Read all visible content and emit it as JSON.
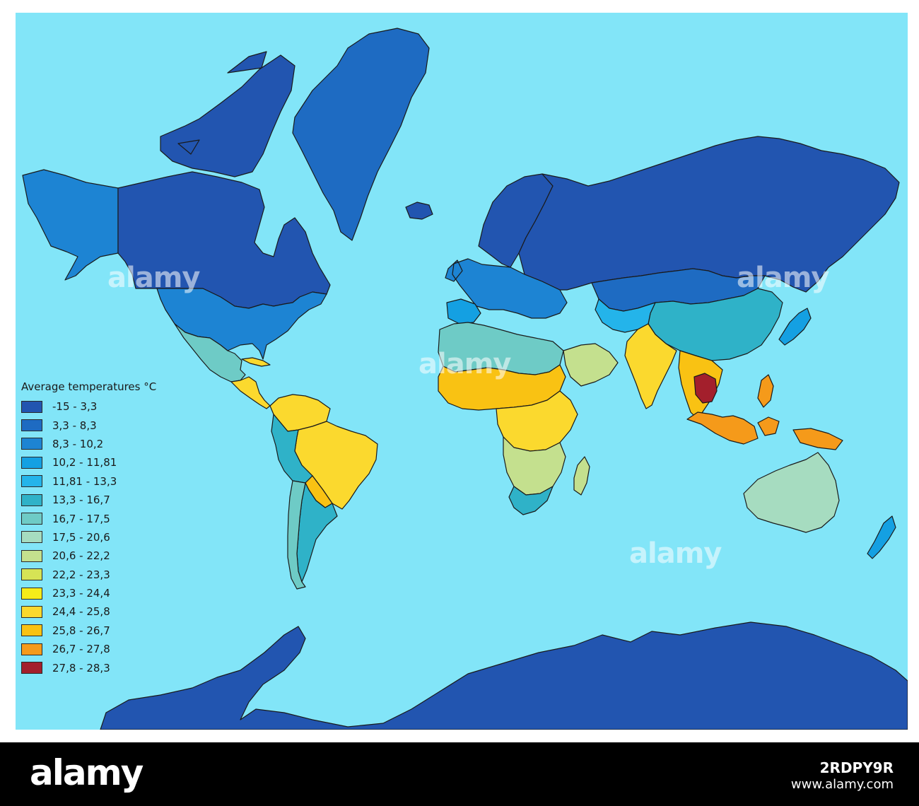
{
  "legend": {
    "title": "Average temperatures °C",
    "items": [
      {
        "label": "-15 - 3,3",
        "color": "#2255b0"
      },
      {
        "label": "3,3 - 8,3",
        "color": "#1e6bc2"
      },
      {
        "label": "8,3 - 10,2",
        "color": "#1d84d3"
      },
      {
        "label": "10,2 - 11,81",
        "color": "#14a0e2"
      },
      {
        "label": "11,81 - 13,3",
        "color": "#24b4ea"
      },
      {
        "label": "13,3 - 16,7",
        "color": "#2fb2c8"
      },
      {
        "label": "16,7 - 17,5",
        "color": "#6ecbc6"
      },
      {
        "label": "17,5 - 20,6",
        "color": "#a6dcc0"
      },
      {
        "label": "20,6 - 22,2",
        "color": "#c4e08e"
      },
      {
        "label": "22,2 - 23,3",
        "color": "#d6e355"
      },
      {
        "label": "23,3 - 24,4",
        "color": "#f6ec1a"
      },
      {
        "label": "24,4 - 25,8",
        "color": "#fbd92e"
      },
      {
        "label": "25,8 - 26,7",
        "color": "#f9c213"
      },
      {
        "label": "26,7 - 27,8",
        "color": "#f59a1a"
      },
      {
        "label": "27,8 - 28,3",
        "color": "#a31f2c"
      }
    ]
  },
  "map": {
    "ocean_color": "#82e5f8",
    "regions": [
      {
        "name": "Antarctica",
        "class": 1
      },
      {
        "name": "Greenland",
        "class": 2
      },
      {
        "name": "Canada",
        "class": 1
      },
      {
        "name": "Canadian Arctic Archipelago",
        "class": 1
      },
      {
        "name": "Alaska",
        "class": 3
      },
      {
        "name": "United States",
        "class": 3
      },
      {
        "name": "Mexico",
        "class": 7
      },
      {
        "name": "Central America",
        "class": 12
      },
      {
        "name": "Venezuela Colombia",
        "class": 12
      },
      {
        "name": "Brazil",
        "class": 12
      },
      {
        "name": "Peru Bolivia",
        "class": 6
      },
      {
        "name": "Argentina",
        "class": 6
      },
      {
        "name": "Chile",
        "class": 7
      },
      {
        "name": "Paraguay",
        "class": 13
      },
      {
        "name": "Iceland",
        "class": 1
      },
      {
        "name": "Scandinavia",
        "class": 1
      },
      {
        "name": "Western Europe",
        "class": 3
      },
      {
        "name": "Iberia",
        "class": 4
      },
      {
        "name": "Russia",
        "class": 1
      },
      {
        "name": "Kazakhstan Mongolia",
        "class": 2
      },
      {
        "name": "China",
        "class": 6
      },
      {
        "name": "Japan",
        "class": 4
      },
      {
        "name": "Central Asia",
        "class": 5
      },
      {
        "name": "North Africa",
        "class": 7
      },
      {
        "name": "Arabian Peninsula",
        "class": 9
      },
      {
        "name": "Sahel",
        "class": 13
      },
      {
        "name": "Central Africa",
        "class": 12
      },
      {
        "name": "Southern Africa",
        "class": 9
      },
      {
        "name": "South Africa",
        "class": 6
      },
      {
        "name": "Madagascar",
        "class": 9
      },
      {
        "name": "India",
        "class": 12
      },
      {
        "name": "Southeast Asia",
        "class": 13
      },
      {
        "name": "Thailand Cambodia",
        "class": 15
      },
      {
        "name": "Indonesia",
        "class": 14
      },
      {
        "name": "Philippines",
        "class": 14
      },
      {
        "name": "New Guinea",
        "class": 14
      },
      {
        "name": "Australia",
        "class": 8
      },
      {
        "name": "New Zealand",
        "class": 4
      }
    ]
  },
  "watermark": {
    "text": "alamy"
  },
  "footer": {
    "logo": "alamy",
    "image_code": "2RDPY9R",
    "site": "www.alamy.com"
  }
}
